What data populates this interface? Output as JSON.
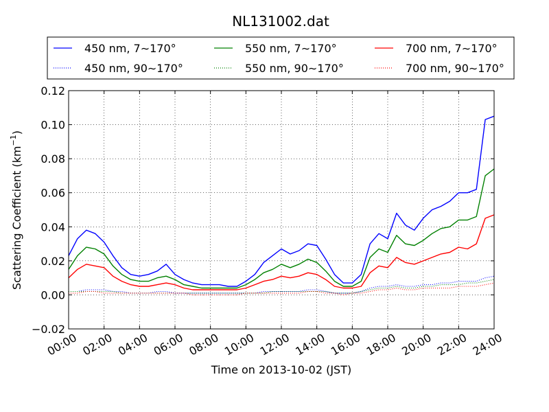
{
  "chart_data": {
    "type": "line",
    "title": "NL131002.dat",
    "xlabel": "Time on 2013-10-02 (JST)",
    "ylabel": "Scattering Coefficient (km",
    "ylabel_sup": "−1",
    "ylabel_close": ")",
    "xlim": [
      0,
      24
    ],
    "ylim": [
      -0.02,
      0.12
    ],
    "x_ticks": [
      0,
      2,
      4,
      6,
      8,
      10,
      12,
      14,
      16,
      18,
      20,
      22,
      24
    ],
    "x_tick_labels": [
      "00:00",
      "02:00",
      "04:00",
      "06:00",
      "08:00",
      "10:00",
      "12:00",
      "14:00",
      "16:00",
      "18:00",
      "20:00",
      "22:00",
      "24:00"
    ],
    "y_ticks": [
      -0.02,
      0.0,
      0.02,
      0.04,
      0.06,
      0.08,
      0.1,
      0.12
    ],
    "y_tick_labels": [
      "−0.02",
      "0.00",
      "0.02",
      "0.04",
      "0.06",
      "0.08",
      "0.10",
      "0.12"
    ],
    "grid": true,
    "legend_position": "top",
    "x_hours": [
      0,
      0.5,
      1,
      1.5,
      2,
      2.5,
      3,
      3.5,
      4,
      4.5,
      5,
      5.5,
      6,
      6.5,
      7,
      7.5,
      8,
      8.5,
      9,
      9.5,
      10,
      10.5,
      11,
      11.5,
      12,
      12.5,
      13,
      13.5,
      14,
      14.5,
      15,
      15.5,
      16,
      16.5,
      17,
      17.5,
      18,
      18.5,
      19,
      19.5,
      20,
      20.5,
      21,
      21.5,
      22,
      22.5,
      23,
      23.5,
      24
    ],
    "series": [
      {
        "name": "450 nm, 7∼170°",
        "color": "#0000ff",
        "style": "solid",
        "values": [
          0.023,
          0.033,
          0.038,
          0.036,
          0.031,
          0.023,
          0.016,
          0.012,
          0.011,
          0.012,
          0.014,
          0.018,
          0.012,
          0.009,
          0.007,
          0.006,
          0.006,
          0.006,
          0.005,
          0.005,
          0.008,
          0.012,
          0.019,
          0.023,
          0.027,
          0.024,
          0.026,
          0.03,
          0.029,
          0.021,
          0.012,
          0.007,
          0.007,
          0.012,
          0.03,
          0.036,
          0.033,
          0.048,
          0.041,
          0.038,
          0.045,
          0.05,
          0.052,
          0.055,
          0.06,
          0.06,
          0.062,
          0.103,
          0.105
        ]
      },
      {
        "name": "450 nm, 90∼170°",
        "color": "#0000ff",
        "style": "dotted",
        "values": [
          0.002,
          0.002,
          0.003,
          0.003,
          0.003,
          0.002,
          0.002,
          0.001,
          0.001,
          0.001,
          0.002,
          0.002,
          0.001,
          0.001,
          0.001,
          0.001,
          0.001,
          0.001,
          0.001,
          0.001,
          0.001,
          0.001,
          0.002,
          0.002,
          0.002,
          0.002,
          0.002,
          0.003,
          0.003,
          0.002,
          0.001,
          0.001,
          0.001,
          0.002,
          0.004,
          0.005,
          0.005,
          0.006,
          0.005,
          0.005,
          0.006,
          0.006,
          0.007,
          0.007,
          0.008,
          0.008,
          0.008,
          0.01,
          0.011
        ]
      },
      {
        "name": "550 nm, 7∼170°",
        "color": "#008000",
        "style": "solid",
        "values": [
          0.015,
          0.023,
          0.028,
          0.027,
          0.024,
          0.017,
          0.012,
          0.009,
          0.008,
          0.008,
          0.01,
          0.011,
          0.009,
          0.006,
          0.005,
          0.004,
          0.004,
          0.004,
          0.004,
          0.004,
          0.006,
          0.009,
          0.013,
          0.015,
          0.018,
          0.016,
          0.018,
          0.021,
          0.019,
          0.014,
          0.008,
          0.005,
          0.005,
          0.008,
          0.022,
          0.027,
          0.025,
          0.035,
          0.03,
          0.029,
          0.032,
          0.036,
          0.039,
          0.04,
          0.044,
          0.044,
          0.046,
          0.07,
          0.074
        ]
      },
      {
        "name": "550 nm, 90∼170°",
        "color": "#008000",
        "style": "dotted",
        "values": [
          0.002,
          0.002,
          0.002,
          0.002,
          0.002,
          0.002,
          0.001,
          0.001,
          0.001,
          0.001,
          0.001,
          0.001,
          0.001,
          0.001,
          0.001,
          0.001,
          0.001,
          0.001,
          0.001,
          0.001,
          0.001,
          0.001,
          0.001,
          0.002,
          0.002,
          0.002,
          0.002,
          0.002,
          0.002,
          0.002,
          0.001,
          0.001,
          0.001,
          0.002,
          0.003,
          0.004,
          0.004,
          0.005,
          0.004,
          0.004,
          0.005,
          0.005,
          0.006,
          0.006,
          0.006,
          0.007,
          0.007,
          0.008,
          0.009
        ]
      },
      {
        "name": "700 nm, 7∼170°",
        "color": "#ff0000",
        "style": "solid",
        "values": [
          0.01,
          0.015,
          0.018,
          0.017,
          0.016,
          0.011,
          0.008,
          0.006,
          0.005,
          0.005,
          0.006,
          0.007,
          0.006,
          0.004,
          0.003,
          0.003,
          0.003,
          0.003,
          0.003,
          0.003,
          0.004,
          0.006,
          0.008,
          0.009,
          0.011,
          0.01,
          0.011,
          0.013,
          0.012,
          0.009,
          0.005,
          0.004,
          0.004,
          0.005,
          0.013,
          0.017,
          0.016,
          0.022,
          0.019,
          0.018,
          0.02,
          0.022,
          0.024,
          0.025,
          0.028,
          0.027,
          0.03,
          0.045,
          0.047
        ]
      },
      {
        "name": "700 nm, 90∼170°",
        "color": "#ff0000",
        "style": "dotted",
        "values": [
          0.001,
          0.001,
          0.002,
          0.002,
          0.001,
          0.001,
          0.001,
          0.001,
          0.001,
          0.001,
          0.001,
          0.001,
          0.001,
          0.001,
          0.0,
          0.0,
          0.0,
          0.0,
          0.0,
          0.0,
          0.001,
          0.001,
          0.001,
          0.001,
          0.001,
          0.001,
          0.001,
          0.002,
          0.002,
          0.001,
          0.001,
          0.0,
          0.001,
          0.001,
          0.002,
          0.003,
          0.003,
          0.004,
          0.003,
          0.003,
          0.004,
          0.004,
          0.004,
          0.004,
          0.005,
          0.005,
          0.005,
          0.006,
          0.007
        ]
      }
    ]
  }
}
